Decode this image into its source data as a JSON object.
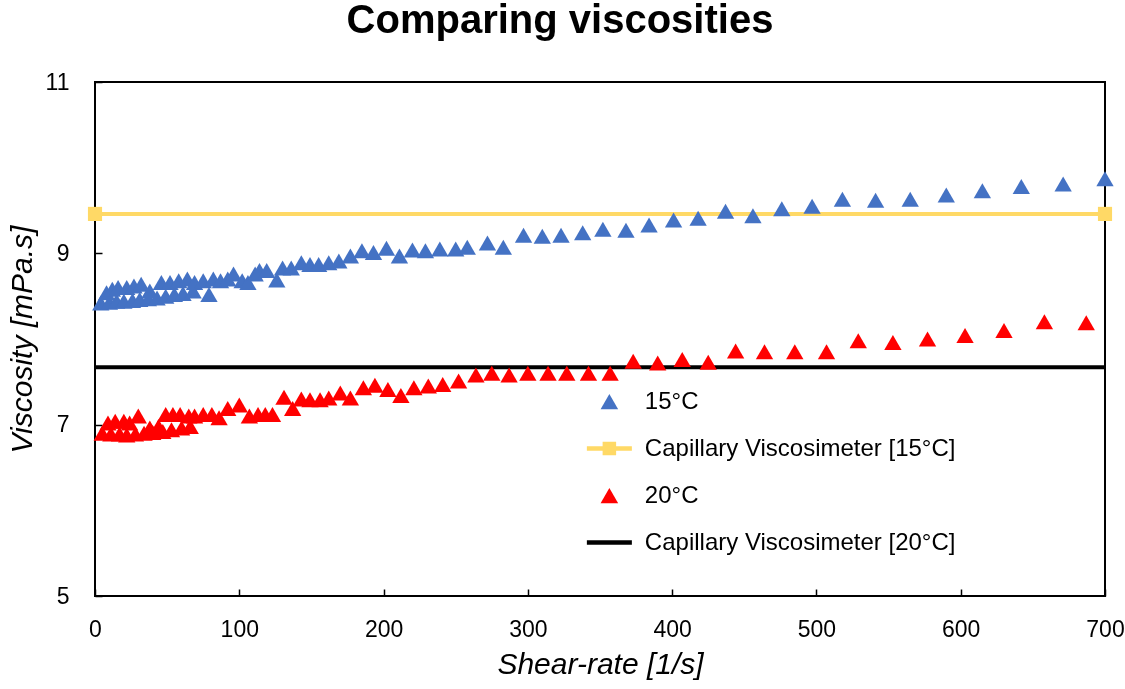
{
  "chart_data": {
    "type": "scatter",
    "title": "Comparing viscosities",
    "xlabel": "Shear-rate [1/s]",
    "ylabel": "Viscosity [mPa.s]",
    "xlim": [
      0,
      700
    ],
    "xticks": [
      0,
      100,
      200,
      300,
      400,
      500,
      600,
      700
    ],
    "ylim": [
      5,
      11
    ],
    "yticks": [
      5,
      7,
      9,
      11
    ],
    "legend": "bottom right",
    "marker": "triangle",
    "series": [
      {
        "name": "15°C",
        "color": "#4472c4",
        "x": [
          4,
          10,
          15,
          20,
          26,
          31,
          37,
          43,
          49,
          55,
          61,
          68,
          8,
          12,
          16,
          22,
          27,
          32,
          38,
          46,
          52,
          58,
          64,
          69,
          75,
          79,
          82,
          87,
          92,
          96,
          102,
          106,
          111,
          114,
          119,
          126,
          130,
          136,
          143,
          149,
          155,
          162,
          169,
          177,
          185,
          193,
          202,
          211,
          220,
          229,
          239,
          250,
          258,
          272,
          283,
          297,
          310,
          323,
          338,
          352,
          368,
          384,
          401,
          418,
          437,
          456,
          476,
          497,
          518,
          541,
          565,
          590,
          615,
          642,
          671,
          700
        ],
        "values": [
          8.42,
          8.43,
          8.44,
          8.44,
          8.45,
          8.46,
          8.47,
          8.48,
          8.5,
          8.52,
          8.53,
          8.56,
          8.54,
          8.58,
          8.6,
          8.6,
          8.62,
          8.64,
          8.56,
          8.66,
          8.66,
          8.68,
          8.7,
          8.66,
          8.68,
          8.52,
          8.7,
          8.68,
          8.7,
          8.76,
          8.68,
          8.66,
          8.76,
          8.8,
          8.8,
          8.69,
          8.83,
          8.83,
          8.89,
          8.87,
          8.87,
          8.89,
          8.91,
          8.97,
          9.03,
          9.01,
          9.06,
          8.97,
          9.04,
          9.03,
          9.05,
          9.05,
          9.07,
          9.12,
          9.07,
          9.21,
          9.2,
          9.21,
          9.24,
          9.28,
          9.27,
          9.33,
          9.39,
          9.41,
          9.49,
          9.44,
          9.52,
          9.55,
          9.63,
          9.62,
          9.63,
          9.68,
          9.73,
          9.78,
          9.81,
          9.87
        ]
      },
      {
        "name": "Capillary Viscosimeter [15°C]",
        "type": "line",
        "color": "#ffd966",
        "marker": "square",
        "x": [
          0,
          700
        ],
        "values": [
          9.46,
          9.46
        ]
      },
      {
        "name": "20°C",
        "color": "#ff0000",
        "x": [
          5,
          11,
          17,
          22,
          28,
          34,
          40,
          47,
          53,
          60,
          66,
          9,
          14,
          20,
          24,
          30,
          38,
          44,
          49,
          54,
          59,
          65,
          69,
          75,
          81,
          86,
          92,
          100,
          107,
          113,
          118,
          123,
          131,
          137,
          143,
          149,
          156,
          162,
          170,
          177,
          186,
          194,
          203,
          212,
          221,
          231,
          241,
          252,
          264,
          275,
          287,
          300,
          314,
          327,
          342,
          357,
          373,
          390,
          407,
          425,
          444,
          464,
          485,
          507,
          529,
          553,
          577,
          603,
          630,
          658,
          687
        ],
        "values": [
          6.9,
          6.89,
          6.89,
          6.88,
          6.89,
          6.9,
          6.91,
          6.92,
          6.94,
          6.96,
          6.98,
          7.02,
          7.04,
          7.04,
          7.02,
          7.1,
          6.96,
          6.98,
          7.12,
          7.12,
          7.12,
          7.1,
          7.1,
          7.12,
          7.12,
          7.08,
          7.19,
          7.23,
          7.1,
          7.12,
          7.12,
          7.12,
          7.32,
          7.19,
          7.3,
          7.29,
          7.29,
          7.31,
          7.37,
          7.31,
          7.43,
          7.46,
          7.41,
          7.34,
          7.43,
          7.45,
          7.47,
          7.51,
          7.58,
          7.6,
          7.58,
          7.6,
          7.6,
          7.6,
          7.6,
          7.6,
          7.74,
          7.72,
          7.76,
          7.73,
          7.86,
          7.85,
          7.85,
          7.85,
          7.98,
          7.96,
          8.0,
          8.04,
          8.1,
          8.2,
          8.19
        ]
      },
      {
        "name": "Capillary Viscosimeter [20°C]",
        "type": "line",
        "color": "#000000",
        "marker": "none",
        "x": [
          0,
          700
        ],
        "values": [
          7.67,
          7.67
        ]
      }
    ]
  }
}
